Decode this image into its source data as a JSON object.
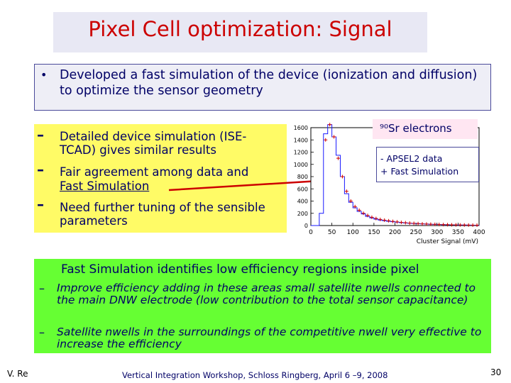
{
  "slide": {
    "title": "Pixel Cell optimization: Signal",
    "intro_bullet": "•",
    "intro": "Developed a fast simulation of the device (ionization and diffusion) to optimize the sensor geometry",
    "sub_dash": "–",
    "sub_items": [
      "Detailed device simulation (ISE-TCAD) gives similar results",
      "Fair agreement among data and",
      "Fast Simulation",
      "Need further tuning of the sensible parameters"
    ],
    "green_heading": "Fast Simulation identifies low efficiency regions inside pixel",
    "green_items": [
      "Improve efficiency adding in these areas small satellite nwells connected to the main DNW electrode (low contribution to the total sensor capacitance)",
      "Satellite nwells in the surroundings of the competitive nwell very effective to increase the efficiency"
    ],
    "footer": {
      "author": "V. Re",
      "center": "Vertical Integration Workshop, Schloss Ringberg, April 6 –9, 2008",
      "page": "30"
    }
  },
  "chart_data": {
    "type": "scatter",
    "title": "",
    "xlabel": "Cluster Signal (mV)",
    "ylabel": "",
    "xlim": [
      0,
      400
    ],
    "ylim": [
      0,
      1600
    ],
    "x_ticks": [
      "0",
      "50",
      "100",
      "150",
      "200",
      "250",
      "300",
      "350",
      "400"
    ],
    "y_ticks": [
      "0",
      "200",
      "400",
      "600",
      "800",
      "1000",
      "1200",
      "1400",
      "1600"
    ],
    "annotation": "⁹⁰Sr electrons",
    "legend": [
      "- APSEL2 data",
      "+ Fast Simulation"
    ],
    "legend_placement": "top-right",
    "series": [
      {
        "name": "APSEL2 data",
        "style": "histogram",
        "color": "#1a1aff",
        "x": [
          5,
          15,
          25,
          35,
          45,
          55,
          65,
          75,
          85,
          95,
          105,
          115,
          125,
          135,
          145,
          155,
          165,
          175,
          185,
          195,
          205,
          215,
          225,
          235,
          245,
          255,
          265,
          275,
          285,
          295,
          305,
          315,
          325,
          335,
          345,
          355,
          365,
          375,
          385,
          395
        ],
        "values": [
          0,
          0,
          200,
          1500,
          1650,
          1450,
          1150,
          800,
          520,
          380,
          290,
          230,
          190,
          150,
          125,
          105,
          90,
          80,
          70,
          62,
          55,
          48,
          42,
          37,
          33,
          30,
          27,
          24,
          21,
          19,
          17,
          15,
          13,
          11,
          10,
          9,
          8,
          7,
          6,
          5
        ]
      },
      {
        "name": "Fast Simulation",
        "style": "markers",
        "color": "#cc0000",
        "x": [
          35,
          45,
          55,
          65,
          75,
          85,
          95,
          105,
          115,
          125,
          135,
          145,
          155,
          165,
          175,
          185,
          195,
          205,
          215,
          225,
          235,
          245,
          255,
          265,
          275,
          285,
          295,
          305,
          315,
          325,
          335,
          345,
          355,
          365,
          375,
          385,
          395
        ],
        "values": [
          1400,
          1650,
          1450,
          1100,
          800,
          560,
          400,
          310,
          250,
          200,
          165,
          135,
          115,
          100,
          88,
          78,
          68,
          60,
          52,
          46,
          40,
          36,
          32,
          28,
          25,
          22,
          20,
          18,
          16,
          14,
          12,
          11,
          10,
          9,
          8,
          7,
          6
        ]
      }
    ]
  }
}
